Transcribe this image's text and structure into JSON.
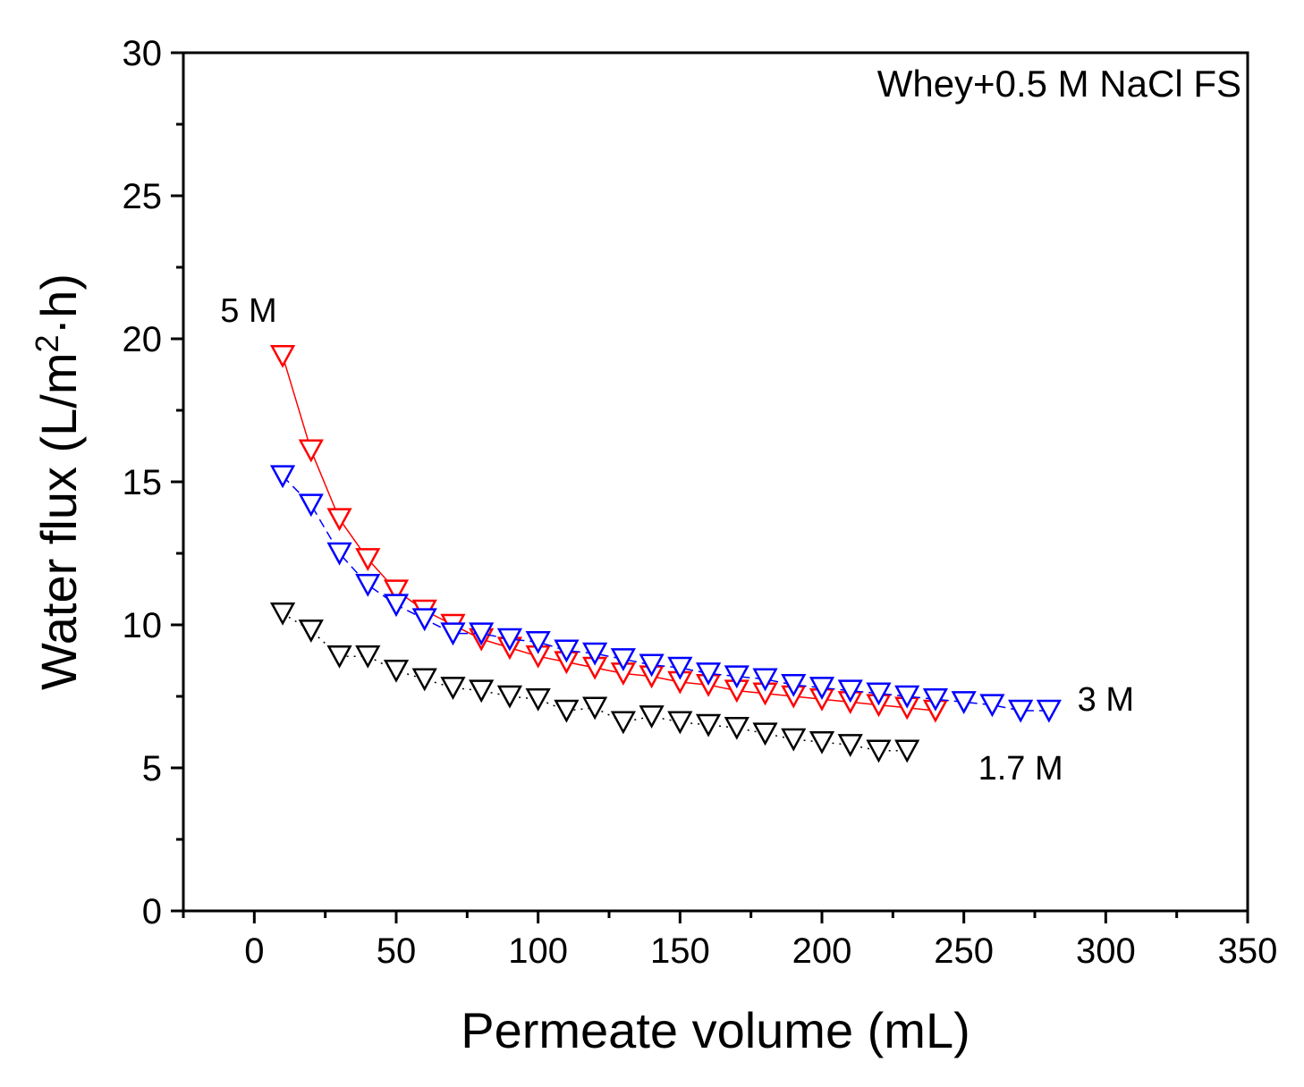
{
  "chart_data": {
    "type": "scatter",
    "title": "",
    "xlabel": "Permeate volume (mL)",
    "ylabel_main": "Water flux (L/m",
    "ylabel_sup": "2",
    "ylabel_tail": "·h)",
    "xlim": [
      -25,
      350
    ],
    "ylim": [
      0,
      30
    ],
    "x_ticks": [
      "0",
      "50",
      "100",
      "150",
      "200",
      "250",
      "300",
      "350"
    ],
    "y_ticks": [
      "0",
      "5",
      "10",
      "15",
      "20",
      "25",
      "30"
    ],
    "annotation": "Whey+0.5 M NaCl FS",
    "series": [
      {
        "name": "5 M",
        "color": "#ff0000",
        "line": "solid",
        "x": [
          10,
          20,
          30,
          40,
          50,
          60,
          70,
          80,
          90,
          100,
          110,
          120,
          130,
          140,
          150,
          160,
          170,
          180,
          190,
          200,
          210,
          220,
          230,
          240
        ],
        "y": [
          19.4,
          16.1,
          13.7,
          12.3,
          11.2,
          10.5,
          10.0,
          9.5,
          9.2,
          8.9,
          8.7,
          8.5,
          8.3,
          8.2,
          8.0,
          7.9,
          7.7,
          7.6,
          7.5,
          7.4,
          7.3,
          7.2,
          7.1,
          7.0
        ]
      },
      {
        "name": "3 M",
        "color": "#0000ff",
        "line": "dashed",
        "x": [
          10,
          20,
          30,
          40,
          50,
          60,
          70,
          80,
          90,
          100,
          110,
          120,
          130,
          140,
          150,
          160,
          170,
          180,
          190,
          200,
          210,
          220,
          230,
          240,
          250,
          260,
          270,
          280
        ],
        "y": [
          15.2,
          14.2,
          12.5,
          11.4,
          10.7,
          10.2,
          9.7,
          9.7,
          9.5,
          9.4,
          9.1,
          9.0,
          8.8,
          8.6,
          8.5,
          8.3,
          8.2,
          8.1,
          7.9,
          7.8,
          7.7,
          7.6,
          7.5,
          7.4,
          7.3,
          7.2,
          7.0,
          7.0
        ]
      },
      {
        "name": "1.7 M",
        "color": "#000000",
        "line": "dotted",
        "x": [
          10,
          20,
          30,
          40,
          50,
          60,
          70,
          80,
          90,
          100,
          110,
          120,
          130,
          140,
          150,
          160,
          170,
          180,
          190,
          200,
          210,
          220,
          230
        ],
        "y": [
          10.4,
          9.8,
          8.9,
          8.9,
          8.4,
          8.1,
          7.8,
          7.7,
          7.5,
          7.4,
          7.0,
          7.1,
          6.6,
          6.8,
          6.6,
          6.5,
          6.4,
          6.2,
          6.0,
          5.9,
          5.8,
          5.6,
          5.6
        ]
      }
    ],
    "series_labels": [
      {
        "text": "5 M",
        "x": -2,
        "y": 20.6
      },
      {
        "text": "3 M",
        "x": 300,
        "y": 7.0
      },
      {
        "text": "1.7 M",
        "x": 270,
        "y": 4.6
      }
    ]
  }
}
